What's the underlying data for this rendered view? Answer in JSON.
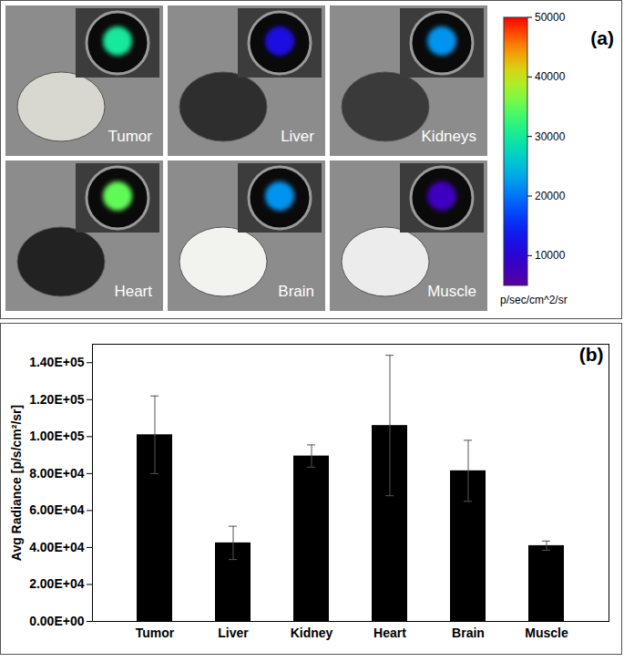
{
  "chart_data": [
    {
      "type": "image",
      "title": "(a)",
      "panels": [
        {
          "label": "Tumor",
          "signal": 30000
        },
        {
          "label": "Liver",
          "signal": 12000
        },
        {
          "label": "Kidneys",
          "signal": 22000
        },
        {
          "label": "Heart",
          "signal": 35000
        },
        {
          "label": "Brain",
          "signal": 22000
        },
        {
          "label": "Muscle",
          "signal": 8000
        }
      ],
      "colorbar": {
        "range": [
          5000,
          50000
        ],
        "ticks": [
          10000,
          20000,
          30000,
          40000,
          50000
        ],
        "label": "p/sec/cm^2/sr"
      }
    },
    {
      "type": "bar",
      "title": "(b)",
      "categories": [
        "Tumor",
        "Liver",
        "Kidney",
        "Heart",
        "Brain",
        "Muscle"
      ],
      "values": [
        101000,
        42500,
        89500,
        106000,
        81500,
        41000
      ],
      "errors": [
        21000,
        9000,
        6000,
        38000,
        16500,
        2500
      ],
      "color": "#000000",
      "y_label": "Avg Radiance [p/s/cm²/sr]",
      "ylim": [
        0,
        150000
      ],
      "yticks": [
        {
          "value": 0,
          "label": "0.00E+00"
        },
        {
          "value": 20000,
          "label": "2.00E+04"
        },
        {
          "value": 40000,
          "label": "4.00E+04"
        },
        {
          "value": 60000,
          "label": "6.00E+04"
        },
        {
          "value": 80000,
          "label": "8.00E+04"
        },
        {
          "value": 100000,
          "label": "1.00E+05"
        },
        {
          "value": 120000,
          "label": "1.20E+05"
        },
        {
          "value": 140000,
          "label": "1.40E+05"
        }
      ],
      "grid": false
    }
  ]
}
